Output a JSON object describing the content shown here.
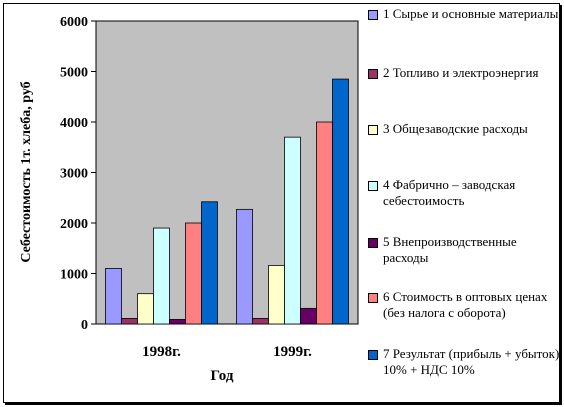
{
  "chart_data": {
    "type": "bar",
    "title": "",
    "xlabel": "Год",
    "ylabel": "Себестоимость 1т. хлеба, руб",
    "ylim": [
      0,
      6000
    ],
    "yticks": [
      "0",
      "1000",
      "2000",
      "3000",
      "4000",
      "5000",
      "6000"
    ],
    "grid": false,
    "legend_position": "right",
    "categories": [
      "1998г.",
      "1999г."
    ],
    "series": [
      {
        "name": "1 Сырье и основные материалы",
        "color": "#9999ff",
        "values": [
          1100,
          2270
        ]
      },
      {
        "name": "2 Топливо и электроэнергия",
        "color": "#993366",
        "values": [
          110,
          110
        ]
      },
      {
        "name": "3 Общезаводские расходы",
        "color": "#ffffcc",
        "values": [
          600,
          1160
        ]
      },
      {
        "name": "4 Фабрично – заводская себестоимость",
        "color": "#ccffff",
        "values": [
          1900,
          3700
        ]
      },
      {
        "name": "5 Внепроизводственные расходы",
        "color": "#660066",
        "values": [
          90,
          310
        ]
      },
      {
        "name": "6 Стоимость в оптовых ценах (без налога с оборота)",
        "color": "#ff8080",
        "values": [
          2000,
          4000
        ]
      },
      {
        "name": "7 Результат (прибыль + убыток) 10% + НДС 10%",
        "color": "#0066cc",
        "values": [
          2420,
          4850
        ]
      }
    ],
    "plot_area_color": "#c0c0c0"
  }
}
